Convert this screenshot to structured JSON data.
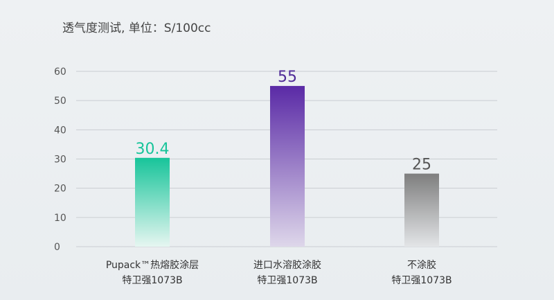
{
  "chart_data": {
    "type": "bar",
    "title": "透气度测试, 单位：S/100cc",
    "categories": [
      [
        "Pupack™热熔胶涂层",
        "特卫强1073B"
      ],
      [
        "进口水溶胶涂胶",
        "特卫强1073B"
      ],
      [
        "不涂胶",
        "特卫强1073B"
      ]
    ],
    "values": [
      30.4,
      55,
      25
    ],
    "value_labels": [
      "30.4",
      "55",
      "25"
    ],
    "ylim": [
      0,
      60
    ],
    "yticks": [
      0,
      10,
      20,
      30,
      40,
      50,
      60
    ],
    "grid": true,
    "colors": [
      {
        "top": "#17c49a",
        "bottom": "#e6f6f1",
        "label": "#17c49a"
      },
      {
        "top": "#5a2aa6",
        "bottom": "#ded7ea",
        "label": "#4f2b97"
      },
      {
        "top": "#7e7e7e",
        "bottom": "#e3e5e7",
        "label": "#555555"
      }
    ]
  }
}
